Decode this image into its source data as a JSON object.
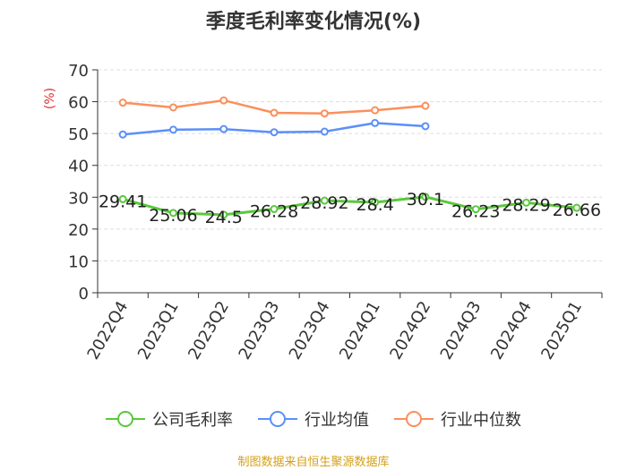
{
  "chart_data": {
    "type": "line",
    "title": "季度毛利率变化情况(%)",
    "ylabel": "(%)",
    "ylim": [
      0,
      70
    ],
    "yticks": [
      0,
      10,
      20,
      30,
      40,
      50,
      60,
      70
    ],
    "categories": [
      "2022Q4",
      "2023Q1",
      "2023Q2",
      "2023Q3",
      "2023Q4",
      "2024Q1",
      "2024Q2",
      "2024Q3",
      "2024Q4",
      "2025Q1"
    ],
    "series": [
      {
        "name": "公司毛利率",
        "color": "#5ac83c",
        "values": [
          29.41,
          25.06,
          24.5,
          26.28,
          28.92,
          28.4,
          30.1,
          26.23,
          28.29,
          26.66
        ],
        "labels": [
          "29.41",
          "25.06",
          "24.5",
          "26.28",
          "28.92",
          "28.4",
          "30.1",
          "26.23",
          "28.29",
          "26.66"
        ]
      },
      {
        "name": "行业均值",
        "color": "#5b8ff9",
        "values": [
          49.7,
          51.2,
          51.4,
          50.4,
          50.6,
          53.3,
          52.3,
          null,
          null,
          null
        ]
      },
      {
        "name": "行业中位数",
        "color": "#fb8f5c",
        "values": [
          59.7,
          58.2,
          60.4,
          56.5,
          56.3,
          57.3,
          58.7,
          null,
          null,
          null
        ]
      }
    ],
    "grid": true,
    "legend_position": "bottom"
  },
  "source_note": "制图数据来自恒生聚源数据库"
}
